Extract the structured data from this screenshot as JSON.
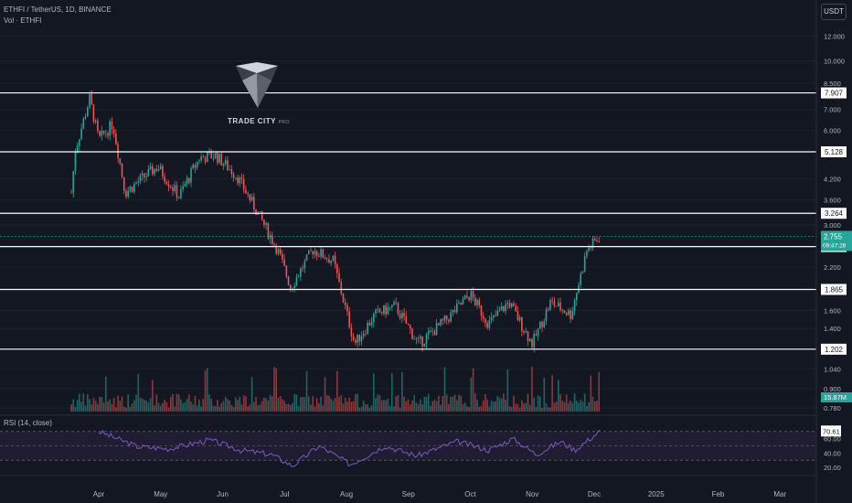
{
  "header": {
    "symbol_line": "ETHFI / TetherUS, 1D, BINANCE",
    "volume_line": "Vol · ETHFI",
    "currency_button": "USDT",
    "rsi_label": "RSI (14, close)"
  },
  "watermark": {
    "brand": "TRADE CITY",
    "suffix": "PRO"
  },
  "colors": {
    "background": "#131722",
    "up": "#26a69a",
    "down": "#ef5350",
    "level_line": "#ffffff",
    "rsi_line": "#7e57c2",
    "rsi_band": "#2a2240",
    "price_badge": "#26a69a"
  },
  "chart_data": {
    "type": "candlestick",
    "y_scale": "log",
    "y_ticks": [
      "12.000",
      "10.000",
      "8.500",
      "7.000",
      "6.000",
      "4.200",
      "3.600",
      "3.000",
      "2.200",
      "1.600",
      "1.400",
      "1.040",
      "0.900",
      "0.780"
    ],
    "y_range": [
      0.75,
      13.5
    ],
    "x_months": [
      "Apr",
      "May",
      "Jun",
      "Jul",
      "Aug",
      "Sep",
      "Oct",
      "Nov",
      "Dec",
      "2025",
      "Feb",
      "Mar"
    ],
    "horizontal_levels": [
      {
        "value": 7.907,
        "label": "7.907"
      },
      {
        "value": 5.128,
        "label": "5.128"
      },
      {
        "value": 3.264,
        "label": "3.264"
      },
      {
        "value": 2.556,
        "label": "2.556"
      },
      {
        "value": 1.865,
        "label": "1.865"
      },
      {
        "value": 1.202,
        "label": "1.202"
      }
    ],
    "last_price": {
      "value": 2.755,
      "label": "2.755",
      "countdown": "09:47:28"
    },
    "volume_last": "15.87M",
    "price_path": [
      {
        "month": "Mar",
        "day": 18,
        "close": 3.8
      },
      {
        "month": "Mar",
        "day": 20,
        "close": 5.2
      },
      {
        "month": "Mar",
        "day": 27,
        "close": 7.6
      },
      {
        "month": "Apr",
        "day": 1,
        "close": 5.6
      },
      {
        "month": "Apr",
        "day": 8,
        "close": 6.3
      },
      {
        "month": "Apr",
        "day": 14,
        "close": 3.8
      },
      {
        "month": "Apr",
        "day": 22,
        "close": 4.2
      },
      {
        "month": "Apr",
        "day": 30,
        "close": 4.6
      },
      {
        "month": "May",
        "day": 10,
        "close": 3.7
      },
      {
        "month": "May",
        "day": 20,
        "close": 4.9
      },
      {
        "month": "May",
        "day": 28,
        "close": 5.0
      },
      {
        "month": "Jun",
        "day": 8,
        "close": 4.3
      },
      {
        "month": "Jun",
        "day": 18,
        "close": 3.3
      },
      {
        "month": "Jun",
        "day": 28,
        "close": 2.5
      },
      {
        "month": "Jul",
        "day": 4,
        "close": 1.9
      },
      {
        "month": "Jul",
        "day": 15,
        "close": 2.5
      },
      {
        "month": "Jul",
        "day": 25,
        "close": 2.3
      },
      {
        "month": "Aug",
        "day": 5,
        "close": 1.25
      },
      {
        "month": "Aug",
        "day": 15,
        "close": 1.55
      },
      {
        "month": "Aug",
        "day": 25,
        "close": 1.65
      },
      {
        "month": "Sep",
        "day": 6,
        "close": 1.25
      },
      {
        "month": "Sep",
        "day": 20,
        "close": 1.5
      },
      {
        "month": "Oct",
        "day": 1,
        "close": 1.8
      },
      {
        "month": "Oct",
        "day": 10,
        "close": 1.45
      },
      {
        "month": "Oct",
        "day": 20,
        "close": 1.7
      },
      {
        "month": "Nov",
        "day": 1,
        "close": 1.25
      },
      {
        "month": "Nov",
        "day": 10,
        "close": 1.7
      },
      {
        "month": "Nov",
        "day": 20,
        "close": 1.55
      },
      {
        "month": "Nov",
        "day": 28,
        "close": 2.5
      },
      {
        "month": "Dec",
        "day": 4,
        "close": 2.755
      }
    ],
    "rsi": {
      "ticks": [
        "70.61",
        "60.00",
        "40.00",
        "20.00"
      ],
      "range": [
        15,
        85
      ],
      "band": [
        30,
        70
      ],
      "mid": 50,
      "current": {
        "value": 70.61,
        "label": "70.61"
      },
      "path": [
        {
          "month": "Apr",
          "day": 1,
          "value": 70
        },
        {
          "month": "Apr",
          "day": 20,
          "value": 49
        },
        {
          "month": "May",
          "day": 5,
          "value": 46
        },
        {
          "month": "May",
          "day": 25,
          "value": 58
        },
        {
          "month": "Jun",
          "day": 10,
          "value": 44
        },
        {
          "month": "Jun",
          "day": 25,
          "value": 38
        },
        {
          "month": "Jul",
          "day": 5,
          "value": 22
        },
        {
          "month": "Jul",
          "day": 18,
          "value": 50
        },
        {
          "month": "Aug",
          "day": 3,
          "value": 24
        },
        {
          "month": "Aug",
          "day": 20,
          "value": 50
        },
        {
          "month": "Sep",
          "day": 5,
          "value": 36
        },
        {
          "month": "Sep",
          "day": 25,
          "value": 56
        },
        {
          "month": "Oct",
          "day": 10,
          "value": 44
        },
        {
          "month": "Oct",
          "day": 22,
          "value": 60
        },
        {
          "month": "Nov",
          "day": 3,
          "value": 38
        },
        {
          "month": "Nov",
          "day": 15,
          "value": 56
        },
        {
          "month": "Nov",
          "day": 22,
          "value": 44
        },
        {
          "month": "Dec",
          "day": 4,
          "value": 70.61
        }
      ]
    }
  }
}
